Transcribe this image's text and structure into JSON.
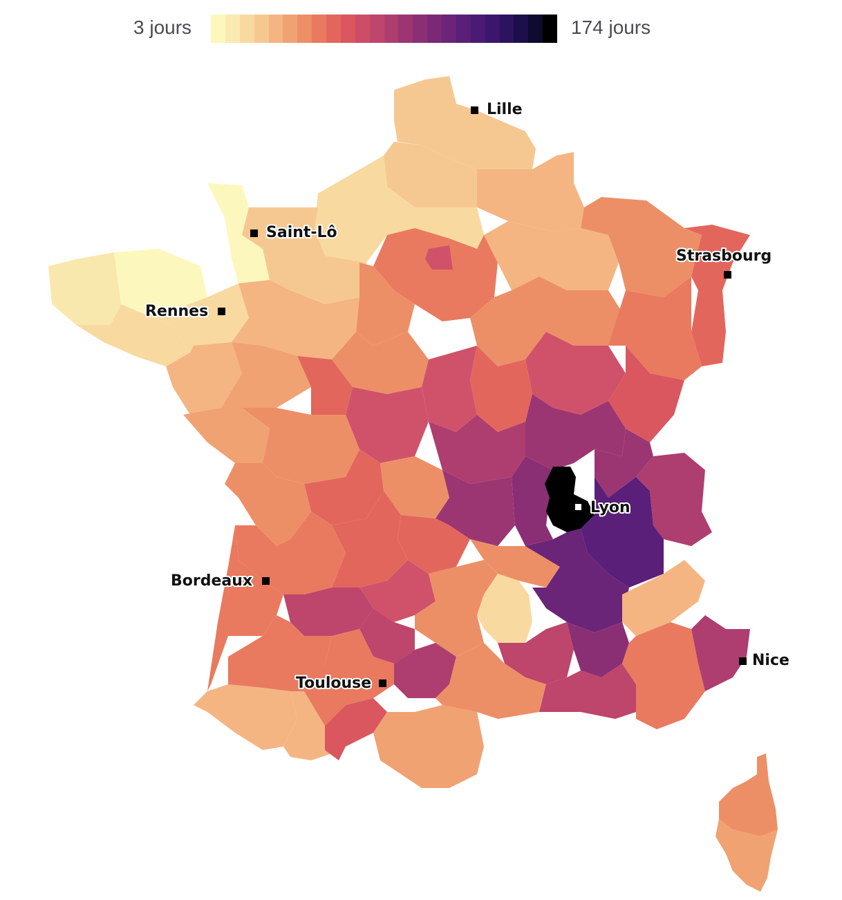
{
  "legend": {
    "min_label": "3 jours",
    "max_label": "174 jours",
    "colors": [
      "#fcf8bd",
      "#fae9b0",
      "#f8d9a0",
      "#f6c891",
      "#f4b583",
      "#f0a273",
      "#ed8f66",
      "#e97a5f",
      "#e3665d",
      "#da575f",
      "#cc4d65",
      "#be456b",
      "#ae3e6f",
      "#9c3672",
      "#8b2f74",
      "#7a2976",
      "#6a2478",
      "#591f79",
      "#4a1b74",
      "#3a176c",
      "#2b1360",
      "#1c0f4c",
      "#0e0a30",
      "#000000"
    ]
  },
  "cities": [
    {
      "name": "Lille",
      "marker": "filled-square"
    },
    {
      "name": "Saint-Lô",
      "marker": "filled-square"
    },
    {
      "name": "Strasbourg",
      "marker": "filled-square"
    },
    {
      "name": "Rennes",
      "marker": "filled-square"
    },
    {
      "name": "Lyon",
      "marker": "outlined-square"
    },
    {
      "name": "Bordeaux",
      "marker": "filled-square"
    },
    {
      "name": "Nice",
      "marker": "filled-square"
    },
    {
      "name": "Toulouse",
      "marker": "filled-square"
    }
  ]
}
